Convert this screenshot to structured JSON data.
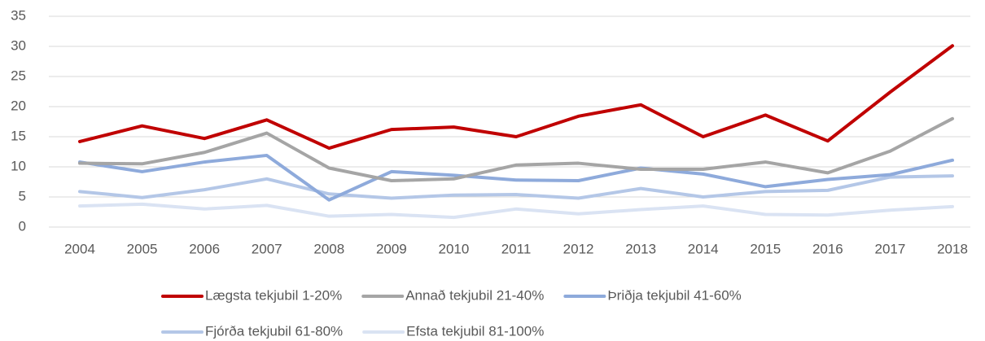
{
  "chart_data": {
    "type": "line",
    "categories": [
      "2004",
      "2005",
      "2006",
      "2007",
      "2008",
      "2009",
      "2010",
      "2011",
      "2012",
      "2013",
      "2014",
      "2015",
      "2016",
      "2017",
      "2018"
    ],
    "ylim": [
      0,
      35
    ],
    "yticks": [
      0,
      5,
      10,
      15,
      20,
      25,
      30,
      35
    ],
    "grid": true,
    "legend": "bottom",
    "series": [
      {
        "name": "Lægsta tekjubil 1-20%",
        "color": "#c00000",
        "values": [
          14.2,
          16.8,
          14.7,
          17.8,
          13.1,
          16.2,
          16.6,
          15.0,
          18.4,
          20.3,
          15.0,
          18.6,
          14.3,
          22.4,
          30.1
        ]
      },
      {
        "name": "Annað tekjubil 21-40%",
        "color": "#a5a5a5",
        "values": [
          10.6,
          10.5,
          12.4,
          15.6,
          9.8,
          7.7,
          8.0,
          10.3,
          10.6,
          9.6,
          9.6,
          10.8,
          9.0,
          12.6,
          18.0
        ]
      },
      {
        "name": "Þriðja tekjubil 41-60%",
        "color": "#8eaadb",
        "values": [
          10.8,
          9.2,
          10.8,
          11.9,
          4.5,
          9.2,
          8.6,
          7.8,
          7.7,
          9.8,
          8.8,
          6.7,
          7.9,
          8.7,
          11.1
        ]
      },
      {
        "name": "Fjórða tekjubil 61-80%",
        "color": "#b4c7e7",
        "values": [
          5.9,
          4.9,
          6.2,
          8.0,
          5.5,
          4.8,
          5.3,
          5.4,
          4.8,
          6.4,
          5.0,
          5.9,
          6.1,
          8.3,
          8.5
        ]
      },
      {
        "name": "Efsta tekjubil 81-100%",
        "color": "#dae3f3",
        "values": [
          3.5,
          3.8,
          3.0,
          3.6,
          1.8,
          2.1,
          1.6,
          3.0,
          2.2,
          2.9,
          3.5,
          2.1,
          2.0,
          2.8,
          3.4
        ]
      }
    ]
  }
}
